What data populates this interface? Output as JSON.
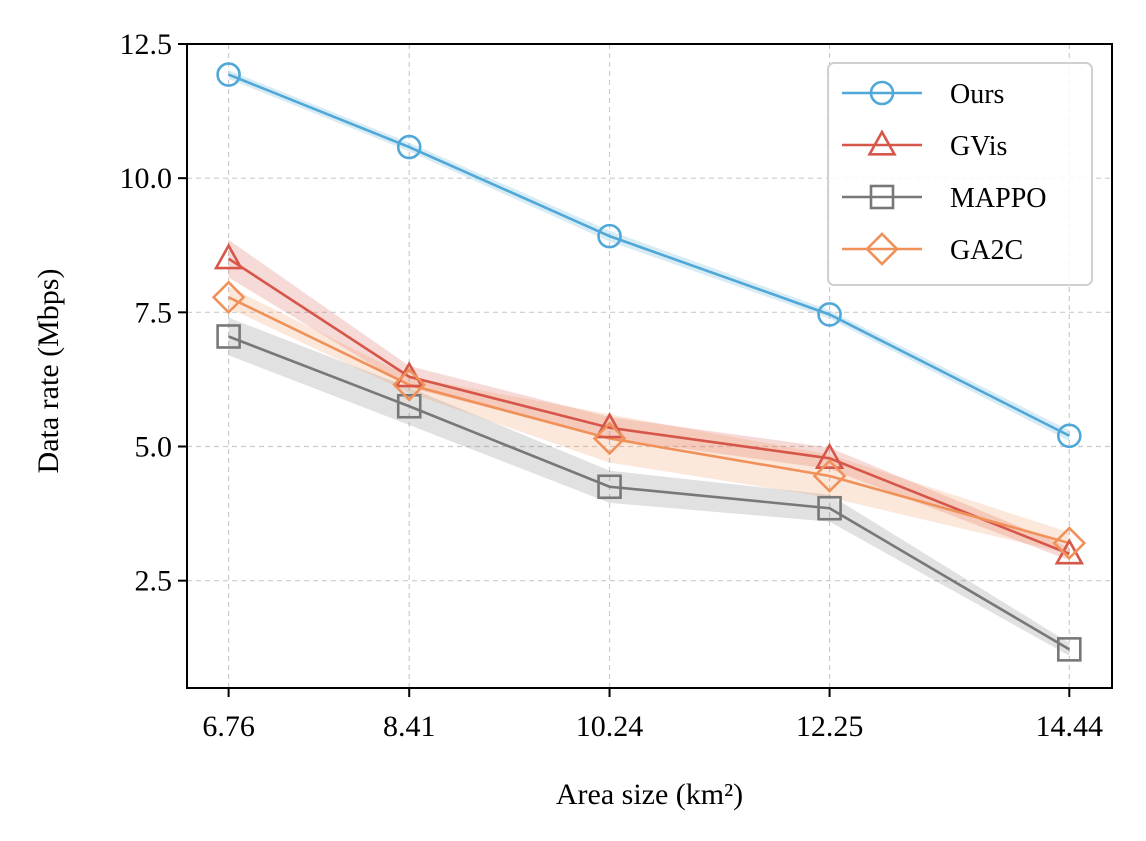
{
  "chart_data": {
    "type": "line",
    "title": "",
    "xlabel": "Area size (km²)",
    "ylabel": "Data rate (Mbps)",
    "categories": [
      "6.76",
      "8.41",
      "10.24",
      "12.25",
      "14.44"
    ],
    "x": [
      6.76,
      8.41,
      10.24,
      12.25,
      14.44
    ],
    "xlim": [
      6.38,
      14.83
    ],
    "ylim": [
      0.5,
      12.5
    ],
    "yticks": [
      2.5,
      5.0,
      7.5,
      10.0,
      12.5
    ],
    "ytick_labels": [
      "2.5",
      "5.0",
      "7.5",
      "10.0",
      "12.5"
    ],
    "grid": true,
    "legend_position": "top-right",
    "series": [
      {
        "name": "Ours",
        "marker": "circle",
        "color": "#4fa8d8",
        "values": [
          11.93,
          10.58,
          8.92,
          7.46,
          5.2
        ],
        "band": [
          0.08,
          0.08,
          0.1,
          0.08,
          0.1
        ]
      },
      {
        "name": "GVis",
        "marker": "triangle",
        "color": "#d6564a",
        "values": [
          8.5,
          6.3,
          5.35,
          4.78,
          3.0
        ],
        "band": [
          0.35,
          0.2,
          0.2,
          0.2,
          0.12
        ]
      },
      {
        "name": "MAPPO",
        "marker": "square",
        "color": "#787878",
        "values": [
          7.05,
          5.75,
          4.25,
          3.85,
          1.22
        ],
        "band": [
          0.35,
          0.35,
          0.3,
          0.25,
          0.12
        ]
      },
      {
        "name": "GA2C",
        "marker": "diamond",
        "color": "#f0915a",
        "values": [
          7.78,
          6.15,
          5.15,
          4.45,
          3.2
        ],
        "band": [
          0.2,
          0.15,
          0.45,
          0.4,
          0.2
        ]
      }
    ]
  }
}
